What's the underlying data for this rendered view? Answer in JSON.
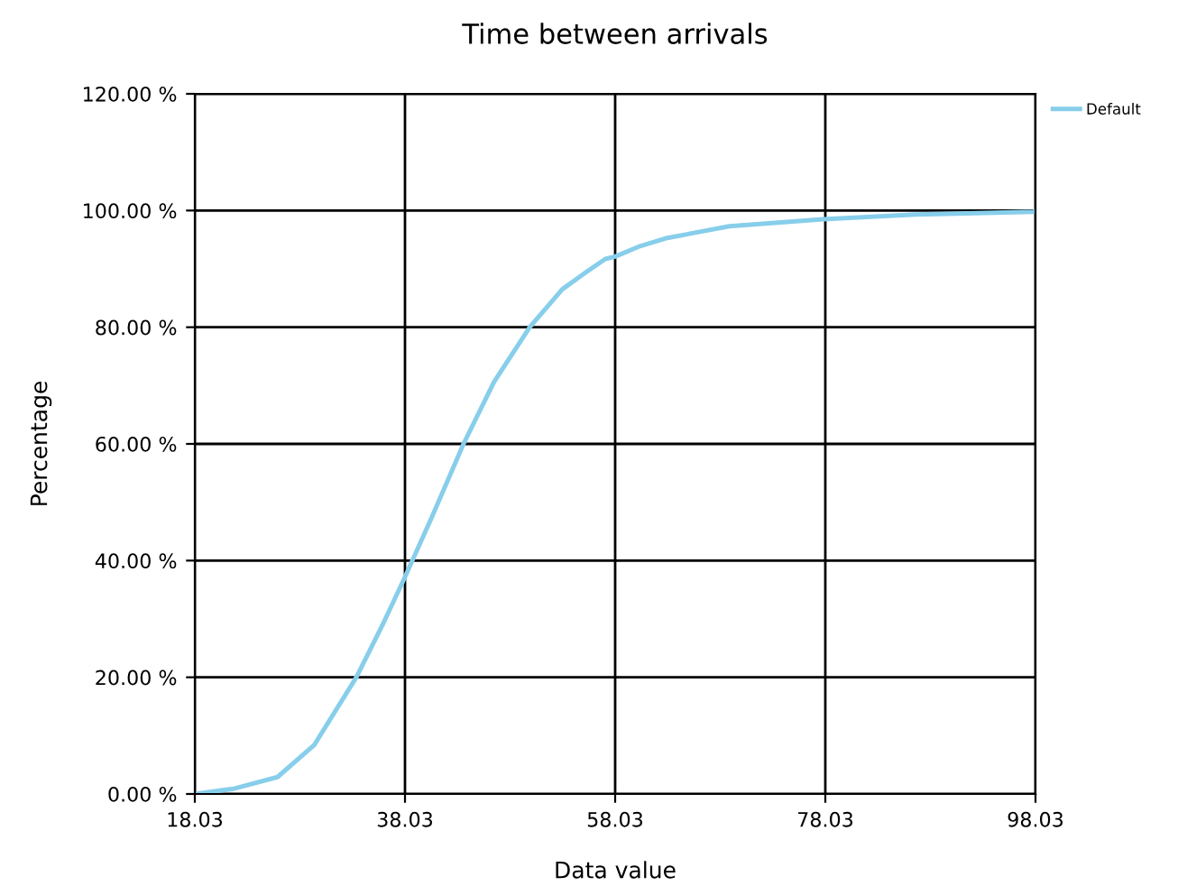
{
  "chart_data": {
    "type": "line",
    "title": "Time between arrivals",
    "xlabel": "Data value",
    "ylabel": "Percentage",
    "xlim": [
      18.03,
      98.03
    ],
    "xticks": [
      18.03,
      38.03,
      58.03,
      78.03,
      98.03
    ],
    "ylim": [
      0,
      120
    ],
    "yticks": [
      {
        "value": 0,
        "label": "0.00 %"
      },
      {
        "value": 20,
        "label": "20.00 %"
      },
      {
        "value": 40,
        "label": "40.00 %"
      },
      {
        "value": 60,
        "label": "60.00 %"
      },
      {
        "value": 80,
        "label": "80.00 %"
      },
      {
        "value": 100,
        "label": "100.00 %"
      },
      {
        "value": 120,
        "label": "120.00 %"
      }
    ],
    "grid": true,
    "legend": "top right",
    "marker": "none",
    "line_style": "solid",
    "series": [
      {
        "name": "Default",
        "color": "#87ceeb",
        "x": [
          18.03,
          21.75,
          25.9,
          29.4,
          33.4,
          35.9,
          38.03,
          40.6,
          43.6,
          46.5,
          49.9,
          53.0,
          55.4,
          57.1,
          58.03,
          60.4,
          63.0,
          68.9,
          77.8,
          86.6,
          97.9,
          98.03
        ],
        "values": [
          0,
          0.9,
          2.9,
          8.4,
          20,
          29,
          37.2,
          47.5,
          60,
          70.6,
          80,
          86.5,
          89.6,
          91.7,
          92.1,
          93.9,
          95.3,
          97.3,
          98.5,
          99.3,
          99.8,
          100
        ]
      }
    ]
  }
}
